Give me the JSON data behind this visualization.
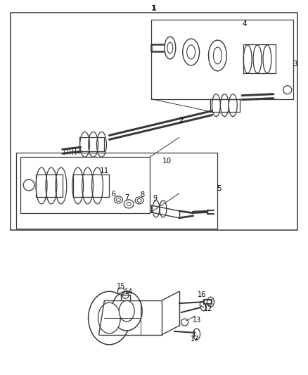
{
  "bg": "#ffffff",
  "lc": "#3a3a3a",
  "tc": "#000000",
  "fw": 4.38,
  "fh": 5.33,
  "dpi": 100
}
